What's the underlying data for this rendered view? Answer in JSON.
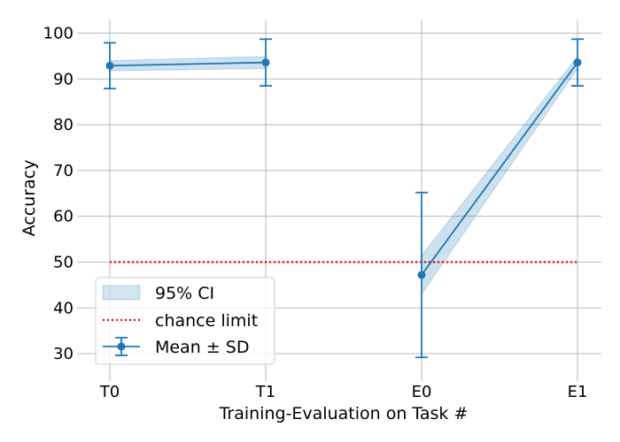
{
  "chart_data": {
    "type": "line",
    "categories": [
      "T0",
      "T1",
      "E0",
      "E1"
    ],
    "xlabel": "Training-Evaluation on Task #",
    "ylabel": "Accuracy",
    "ylim": [
      25,
      103
    ],
    "yticks": [
      30,
      40,
      50,
      60,
      70,
      80,
      90,
      100
    ],
    "grid": true,
    "legend_position": "lower-left",
    "segments": [
      {
        "from": 0,
        "to": 1
      },
      {
        "from": 2,
        "to": 3
      }
    ],
    "series": [
      {
        "name": "Mean ± SD",
        "style": "line-with-markers-and-errorbars",
        "color": "#1f77b4",
        "values": [
          92.9,
          93.6,
          47.2,
          93.6
        ],
        "sd": [
          5.0,
          5.1,
          18.0,
          5.1
        ]
      },
      {
        "name": "95% CI",
        "style": "band",
        "color": "#1f77b4",
        "lower": [
          91.8,
          92.3,
          43.0,
          92.3
        ],
        "upper": [
          94.0,
          94.9,
          51.4,
          94.9
        ]
      },
      {
        "name": "chance limit",
        "style": "dotted-line",
        "color": "#ff0000",
        "value": 50
      }
    ],
    "legend": [
      "95% CI",
      "chance limit",
      "Mean ± SD"
    ]
  }
}
